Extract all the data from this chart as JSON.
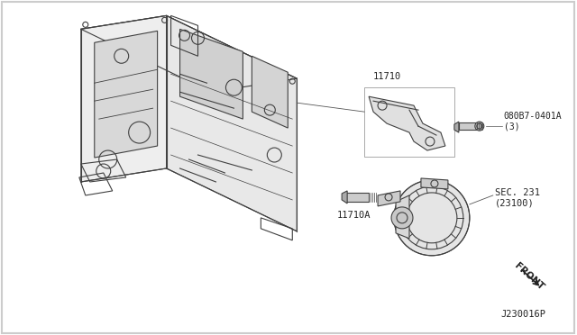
{
  "background_color": "#ffffff",
  "border_color": "#cccccc",
  "line_color": "#404040",
  "text_color": "#222222",
  "label_11710": "11710",
  "label_11710A": "11710A",
  "label_bolt": "080B7-0401A\n(3)",
  "label_sec": "SEC. 231\n(23100)",
  "label_front": "FRONT",
  "label_ref": "J230016P",
  "figsize": [
    6.4,
    3.72
  ],
  "dpi": 100
}
